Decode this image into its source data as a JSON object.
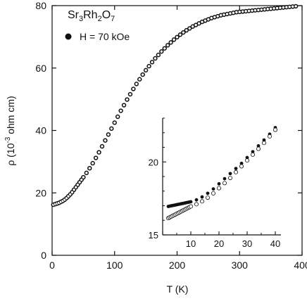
{
  "chart_data": [
    {
      "type": "scatter",
      "title": "Sr3Rh2O7",
      "title_main": "Sr",
      "title_sub1": "3",
      "title_mid": "Rh",
      "title_sub2": "2",
      "title_end": "O",
      "title_sub3": "7",
      "xlabel": "T (K)",
      "ylabel_pre": "ρ (10",
      "ylabel_exp": "-3",
      "ylabel_post": " ohm cm)",
      "xlim": [
        0,
        400
      ],
      "ylim": [
        0,
        80
      ],
      "xticks": [
        0,
        100,
        200,
        300,
        400
      ],
      "yticks": [
        0,
        20,
        40,
        60,
        80
      ],
      "legend_position": "top-left",
      "series": [
        {
          "name": "H = 70 kOe",
          "marker": "filled-circle",
          "x": [
            2,
            5,
            8,
            11,
            14,
            17,
            20,
            23,
            26,
            29,
            32,
            35,
            38,
            41,
            44,
            47,
            50,
            55,
            60,
            65,
            70,
            75,
            80,
            85,
            90,
            95,
            100,
            105,
            110,
            115,
            120,
            125,
            130,
            135,
            140,
            145,
            150,
            155,
            160,
            165,
            170,
            175,
            180,
            185,
            190,
            195,
            200,
            205,
            210,
            215,
            220,
            225,
            230,
            235,
            240,
            245,
            250,
            255,
            260,
            265,
            270,
            275,
            280,
            285,
            290,
            295,
            300,
            305,
            310,
            315,
            320,
            325,
            330,
            335,
            340,
            345,
            350,
            355,
            360,
            365,
            370,
            375,
            380,
            385,
            390
          ],
          "y": [
            16.2,
            16.4,
            16.6,
            16.8,
            17.1,
            17.4,
            17.8,
            18.3,
            18.9,
            19.5,
            20.2,
            21.0,
            21.8,
            22.6,
            23.4,
            24.2,
            25.0,
            26.4,
            27.9,
            29.5,
            31.2,
            33.0,
            34.9,
            36.8,
            38.7,
            40.6,
            42.5,
            44.4,
            46.3,
            48.1,
            49.9,
            51.6,
            53.3,
            54.9,
            56.4,
            57.9,
            59.3,
            60.6,
            61.9,
            63.1,
            64.2,
            65.3,
            66.3,
            67.3,
            68.2,
            69.1,
            69.9,
            70.7,
            71.4,
            72.1,
            72.7,
            73.3,
            73.8,
            74.3,
            74.8,
            75.2,
            75.6,
            76.0,
            76.3,
            76.6,
            76.9,
            77.1,
            77.3,
            77.5,
            77.7,
            77.9,
            78.0,
            78.1,
            78.2,
            78.3,
            78.4,
            78.5,
            78.6,
            78.7,
            78.8,
            78.9,
            79.0,
            79.1,
            79.2,
            79.3,
            79.4,
            79.5,
            79.6,
            79.7,
            79.8
          ]
        },
        {
          "name": "",
          "marker": "open-circle",
          "x": [
            2,
            5,
            8,
            11,
            14,
            17,
            20,
            23,
            26,
            29,
            32,
            35,
            38,
            41,
            44,
            47,
            50,
            55,
            60,
            65,
            70,
            75,
            80,
            85,
            90,
            95,
            100,
            105,
            110,
            115,
            120,
            125,
            130,
            135,
            140,
            145,
            150,
            155,
            160,
            165,
            170,
            175,
            180,
            185,
            190,
            195,
            200,
            205,
            210,
            215,
            220,
            225,
            230,
            235,
            240,
            245,
            250,
            255,
            260,
            265,
            270,
            275,
            280,
            285,
            290,
            295,
            300,
            305,
            310,
            315,
            320,
            325,
            330,
            335,
            340,
            345,
            350,
            355,
            360,
            365,
            370,
            375,
            380,
            385,
            390
          ],
          "y": [
            16.2,
            16.4,
            16.6,
            16.8,
            17.1,
            17.4,
            17.8,
            18.3,
            18.9,
            19.5,
            20.2,
            21.0,
            21.8,
            22.6,
            23.4,
            24.2,
            25.0,
            26.4,
            27.9,
            29.5,
            31.2,
            33.0,
            34.9,
            36.8,
            38.7,
            40.6,
            42.5,
            44.4,
            46.3,
            48.1,
            49.9,
            51.6,
            53.3,
            54.9,
            56.4,
            57.9,
            59.3,
            60.6,
            61.9,
            63.1,
            64.2,
            65.3,
            66.3,
            67.3,
            68.2,
            69.1,
            69.9,
            70.7,
            71.4,
            72.1,
            72.7,
            73.3,
            73.8,
            74.3,
            74.8,
            75.2,
            75.6,
            76.0,
            76.3,
            76.6,
            76.9,
            77.1,
            77.3,
            77.5,
            77.7,
            77.9,
            78.0,
            78.1,
            78.2,
            78.3,
            78.4,
            78.5,
            78.6,
            78.7,
            78.8,
            78.9,
            79.0,
            79.1,
            79.2,
            79.3,
            79.4,
            79.5,
            79.6,
            79.7,
            79.8
          ]
        }
      ]
    },
    {
      "type": "scatter",
      "title": "",
      "xlabel": "",
      "ylabel": "",
      "xlim": [
        0,
        42
      ],
      "ylim": [
        15,
        23
      ],
      "xticks": [
        0,
        10,
        20,
        30,
        40
      ],
      "xtick_labels": [
        "10",
        "20",
        "30",
        "40"
      ],
      "yticks": [
        15,
        20
      ],
      "legend_position": "none",
      "series": [
        {
          "name": "",
          "marker": "filled-circle",
          "x": [
            2,
            2.5,
            3,
            3.5,
            4,
            4.5,
            5,
            5.5,
            6,
            6.5,
            7,
            7.5,
            8,
            8.5,
            9,
            9.5,
            10,
            12,
            14,
            16,
            18,
            20,
            22,
            24,
            26,
            28,
            30,
            32,
            34,
            36,
            38,
            40
          ],
          "y": [
            16.95,
            16.97,
            16.99,
            17.01,
            17.03,
            17.05,
            17.07,
            17.09,
            17.11,
            17.13,
            17.15,
            17.17,
            17.19,
            17.21,
            17.23,
            17.25,
            17.27,
            17.4,
            17.6,
            17.85,
            18.15,
            18.5,
            18.85,
            19.2,
            19.55,
            19.9,
            20.3,
            20.7,
            21.1,
            21.5,
            21.9,
            22.35
          ]
        },
        {
          "name": "",
          "marker": "open-circle",
          "x": [
            2,
            2.5,
            3,
            3.5,
            4,
            4.5,
            5,
            5.5,
            6,
            6.5,
            7,
            7.5,
            8,
            8.5,
            9,
            9.5,
            10,
            12,
            14,
            16,
            18,
            20,
            22,
            24,
            26,
            28,
            30,
            32,
            34,
            36,
            38,
            40
          ],
          "y": [
            16.15,
            16.2,
            16.25,
            16.3,
            16.35,
            16.4,
            16.45,
            16.5,
            16.55,
            16.6,
            16.65,
            16.7,
            16.75,
            16.8,
            16.85,
            16.9,
            16.95,
            17.1,
            17.3,
            17.55,
            17.85,
            18.2,
            18.55,
            18.9,
            19.3,
            19.7,
            20.1,
            20.5,
            20.9,
            21.3,
            21.75,
            22.2
          ]
        }
      ]
    }
  ]
}
